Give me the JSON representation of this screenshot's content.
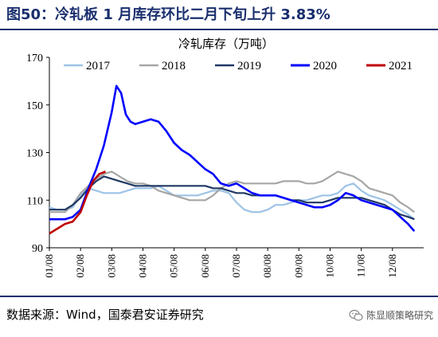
{
  "header": {
    "figure_title": "图50：冷轧板 1 月库存环比二月下旬上升 3.83%"
  },
  "footer": {
    "source": "数据来源：Wind，国泰君安证券研究",
    "watermark": "陈显顺策略研究",
    "watermark_icon": "wechat-icon"
  },
  "colors": {
    "title": "#1a2f6e",
    "s2017": "#9dc3e6",
    "s2018": "#a6a6a6",
    "s2019": "#1f3864",
    "s2020": "#0000ff",
    "s2021": "#c00000"
  },
  "chart_data": {
    "type": "line",
    "title": "冷轧库存（万吨）",
    "xlabel": "",
    "ylabel": "",
    "ylim": [
      90,
      170
    ],
    "yticks": [
      90,
      110,
      130,
      150,
      170
    ],
    "xlim": [
      1,
      13
    ],
    "xtick_labels": [
      "01/08",
      "02/08",
      "03/08",
      "04/08",
      "05/08",
      "06/08",
      "07/08",
      "08/08",
      "09/08",
      "10/08",
      "11/08",
      "12/08"
    ],
    "legend_position": "top",
    "grid": false,
    "series": [
      {
        "name": "2017",
        "x": [
          1,
          1.25,
          1.5,
          1.75,
          2,
          2.25,
          2.5,
          2.75,
          3,
          3.25,
          3.5,
          3.75,
          4,
          4.25,
          4.5,
          4.75,
          5,
          5.25,
          5.5,
          5.75,
          6,
          6.25,
          6.5,
          6.75,
          7,
          7.25,
          7.5,
          7.75,
          8,
          8.25,
          8.5,
          8.75,
          9,
          9.25,
          9.5,
          9.75,
          10,
          10.25,
          10.5,
          10.75,
          11,
          11.25,
          11.5,
          11.75,
          12,
          12.25,
          12.5,
          12.7
        ],
        "values": [
          107,
          106,
          106,
          107,
          112,
          115,
          114,
          113,
          113,
          113,
          114,
          115,
          115,
          115,
          116,
          114,
          112,
          112,
          112,
          112,
          113,
          114,
          114,
          113,
          109,
          106,
          105,
          105,
          106,
          108,
          108,
          109,
          110,
          110,
          111,
          112,
          112,
          113,
          116,
          117,
          114,
          112,
          111,
          110,
          108,
          106,
          104,
          102
        ]
      },
      {
        "name": "2018",
        "x": [
          1,
          1.25,
          1.5,
          1.75,
          2,
          2.25,
          2.5,
          2.75,
          3,
          3.25,
          3.5,
          3.75,
          4,
          4.25,
          4.5,
          4.75,
          5,
          5.25,
          5.5,
          5.75,
          6,
          6.25,
          6.5,
          6.75,
          7,
          7.25,
          7.5,
          7.75,
          8,
          8.25,
          8.5,
          8.75,
          9,
          9.25,
          9.5,
          9.75,
          10,
          10.25,
          10.5,
          10.75,
          11,
          11.25,
          11.5,
          11.75,
          12,
          12.25,
          12.5,
          12.7
        ],
        "values": [
          105,
          105,
          105,
          108,
          113,
          116,
          119,
          121,
          122,
          120,
          118,
          117,
          117,
          116,
          114,
          113,
          112,
          111,
          110,
          110,
          110,
          112,
          115,
          117,
          118,
          117,
          117,
          117,
          117,
          117,
          118,
          118,
          118,
          117,
          117,
          118,
          120,
          122,
          121,
          120,
          118,
          115,
          114,
          113,
          112,
          109,
          107,
          105
        ]
      },
      {
        "name": "2019",
        "x": [
          1,
          1.25,
          1.5,
          1.75,
          2,
          2.25,
          2.5,
          2.75,
          3,
          3.25,
          3.5,
          3.75,
          4,
          4.25,
          4.5,
          4.75,
          5,
          5.25,
          5.5,
          5.75,
          6,
          6.25,
          6.5,
          6.75,
          7,
          7.25,
          7.5,
          7.75,
          8,
          8.25,
          8.5,
          8.75,
          9,
          9.25,
          9.5,
          9.75,
          10,
          10.25,
          10.5,
          10.75,
          11,
          11.25,
          11.5,
          11.75,
          12,
          12.25,
          12.5,
          12.7
        ],
        "values": [
          106,
          106,
          106,
          108,
          111,
          115,
          118,
          120,
          119,
          118,
          117,
          116,
          116,
          116,
          116,
          116,
          116,
          116,
          116,
          116,
          116,
          115,
          115,
          114,
          113,
          113,
          112,
          112,
          112,
          112,
          111,
          110,
          110,
          109,
          109,
          109,
          110,
          111,
          111,
          111,
          111,
          110,
          109,
          108,
          106,
          104,
          103,
          102
        ]
      },
      {
        "name": "2020",
        "x": [
          1,
          1.25,
          1.5,
          1.75,
          2,
          2.25,
          2.5,
          2.75,
          3,
          3.15,
          3.3,
          3.45,
          3.6,
          3.75,
          4,
          4.25,
          4.5,
          4.75,
          5,
          5.25,
          5.5,
          5.75,
          6,
          6.25,
          6.5,
          6.75,
          7,
          7.25,
          7.5,
          7.75,
          8,
          8.25,
          8.5,
          8.75,
          9,
          9.25,
          9.5,
          9.75,
          10,
          10.25,
          10.5,
          10.75,
          11,
          11.25,
          11.5,
          11.75,
          12,
          12.25,
          12.5,
          12.7
        ],
        "values": [
          102,
          102,
          102,
          103,
          106,
          115,
          123,
          133,
          147,
          158,
          155,
          146,
          143,
          142,
          143,
          144,
          143,
          139,
          134,
          131,
          129,
          126,
          123,
          121,
          117,
          116,
          117,
          115,
          113,
          112,
          112,
          112,
          111,
          110,
          109,
          108,
          107,
          107,
          108,
          110,
          113,
          112,
          110,
          109,
          108,
          107,
          106,
          103,
          100,
          97
        ]
      },
      {
        "name": "2021",
        "x": [
          1,
          1.25,
          1.5,
          1.75,
          2,
          2.2,
          2.4,
          2.6,
          2.8
        ],
        "values": [
          96,
          98,
          100,
          101,
          105,
          112,
          118,
          121,
          122
        ]
      }
    ]
  }
}
